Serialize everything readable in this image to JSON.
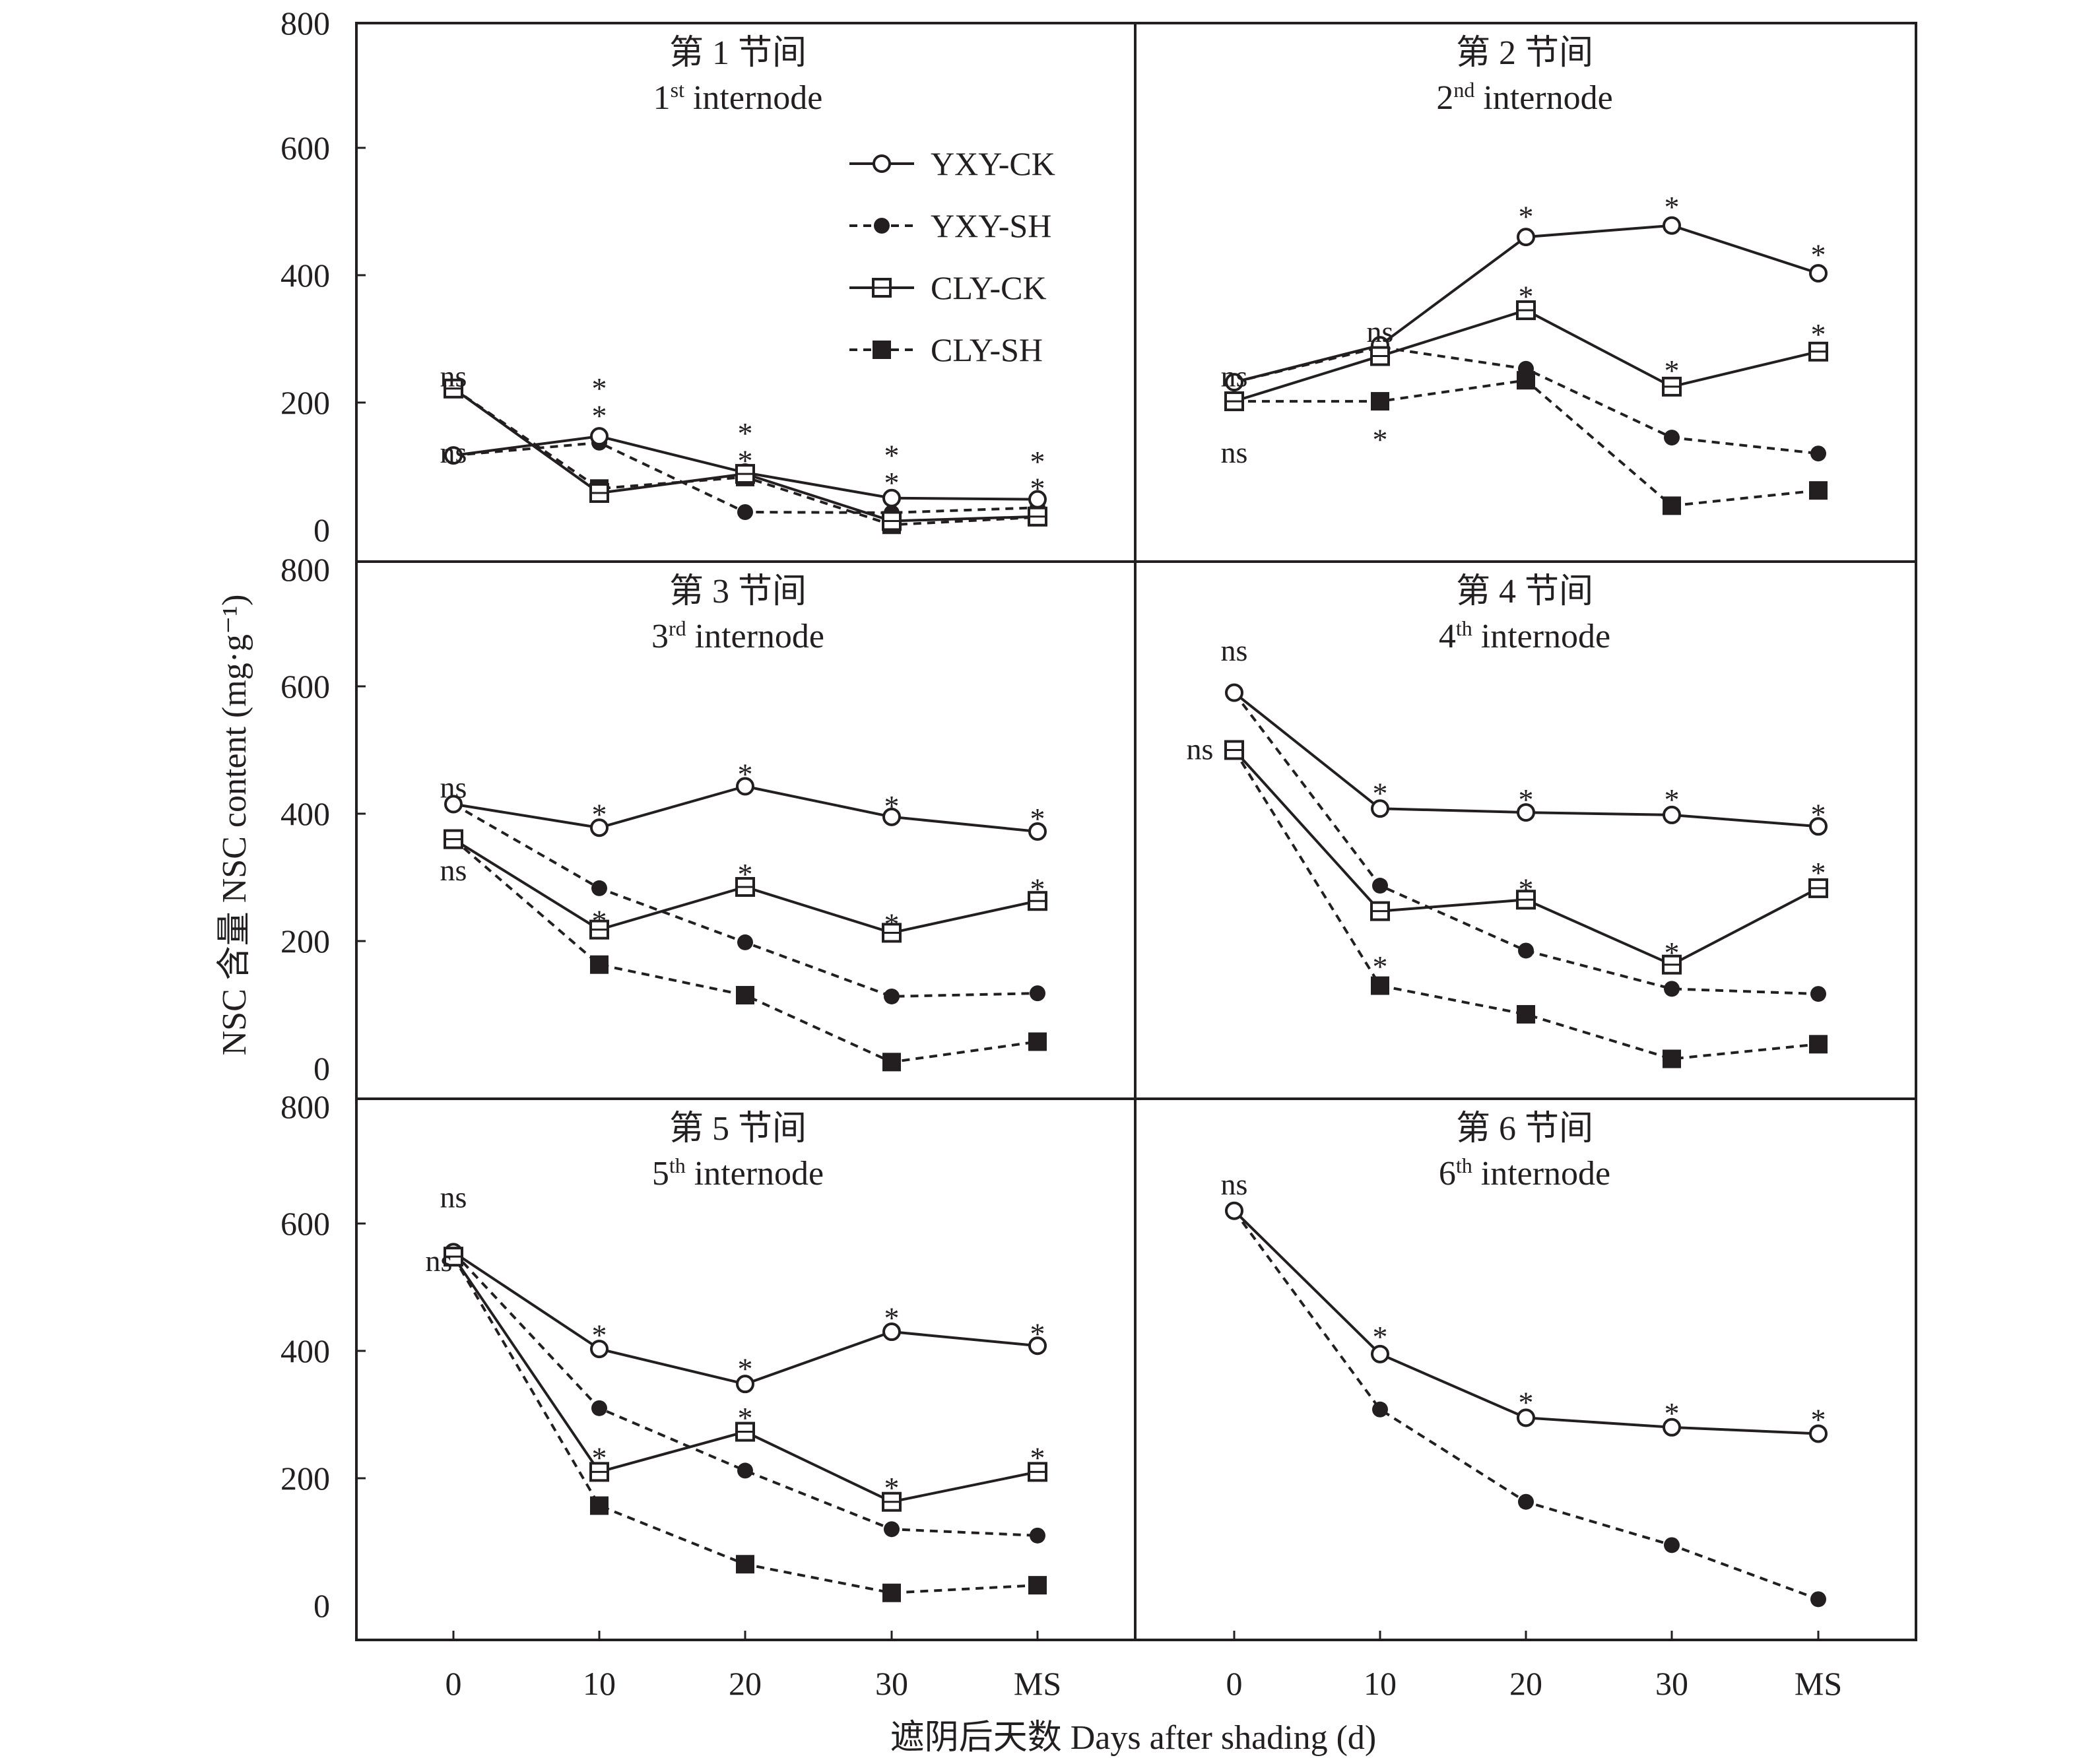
{
  "chart_data": {
    "type": "line",
    "ylabel": "NSC 含量 NSC content (mg·g⁻¹)",
    "xlabel": "遮阴后天数 Days after shading (d)",
    "x_categories": [
      "0",
      "10",
      "20",
      "30",
      "MS"
    ],
    "y_ticks": [
      "0",
      "200",
      "400",
      "600",
      "800"
    ],
    "ylim": [
      0,
      800
    ],
    "legend": [
      {
        "name": "YXY-CK",
        "style": "solid",
        "marker": "open-circle"
      },
      {
        "name": "YXY-SH",
        "style": "dashed",
        "marker": "filled-circle"
      },
      {
        "name": "CLY-CK",
        "style": "solid",
        "marker": "open-square"
      },
      {
        "name": "CLY-SH",
        "style": "dashed",
        "marker": "filled-square"
      }
    ],
    "panels": [
      {
        "title_cn": "第 1 节间",
        "title_num": "1",
        "title_sup": "st",
        "title_en": " internode",
        "series": {
          "YXY-CK": [
            117,
            147,
            90,
            50,
            48
          ],
          "YXY-SH": [
            117,
            137,
            28,
            27,
            35
          ],
          "CLY-CK": [
            222,
            58,
            88,
            14,
            21
          ],
          "CLY-SH": [
            222,
            65,
            83,
            8,
            20
          ]
        },
        "annotations": [
          {
            "x": 0,
            "y": 240,
            "text": "ns"
          },
          {
            "x": 0,
            "y": 120,
            "text": "ns"
          },
          {
            "x": 1,
            "y": 235,
            "text": "*"
          },
          {
            "x": 1,
            "y": 192,
            "text": "*"
          },
          {
            "x": 2,
            "y": 165,
            "text": "*"
          },
          {
            "x": 2,
            "y": 122,
            "text": "*"
          },
          {
            "x": 3,
            "y": 130,
            "text": "*"
          },
          {
            "x": 3,
            "y": 87,
            "text": "*"
          },
          {
            "x": 4,
            "y": 120,
            "text": "*"
          },
          {
            "x": 4,
            "y": 78,
            "text": "*"
          }
        ]
      },
      {
        "title_cn": "第 2 节间",
        "title_num": "2",
        "title_sup": "nd",
        "title_en": " internode",
        "series": {
          "YXY-CK": [
            232,
            290,
            460,
            478,
            403
          ],
          "YXY-SH": [
            232,
            287,
            253,
            145,
            120
          ],
          "CLY-CK": [
            202,
            273,
            345,
            225,
            280
          ],
          "CLY-SH": [
            202,
            202,
            235,
            38,
            62
          ]
        },
        "annotations": [
          {
            "x": 0,
            "y": 240,
            "text": "ns"
          },
          {
            "x": 0,
            "y": 120,
            "text": "ns"
          },
          {
            "x": 1,
            "y": 310,
            "text": "ns"
          },
          {
            "x": 1,
            "y": 155,
            "text": "*"
          },
          {
            "x": 2,
            "y": 505,
            "text": "*"
          },
          {
            "x": 2,
            "y": 380,
            "text": "*"
          },
          {
            "x": 3,
            "y": 520,
            "text": "*"
          },
          {
            "x": 3,
            "y": 263,
            "text": "*"
          },
          {
            "x": 4,
            "y": 445,
            "text": "*"
          },
          {
            "x": 4,
            "y": 320,
            "text": "*"
          }
        ]
      },
      {
        "title_cn": "第 3 节间",
        "title_num": "3",
        "title_sup": "rd",
        "title_en": " internode",
        "series": {
          "YXY-CK": [
            415,
            378,
            443,
            395,
            372
          ],
          "YXY-SH": [
            415,
            283,
            198,
            113,
            118
          ],
          "CLY-CK": [
            360,
            218,
            285,
            213,
            263
          ],
          "CLY-SH": [
            360,
            163,
            115,
            10,
            42
          ]
        },
        "annotations": [
          {
            "x": 0,
            "y": 440,
            "text": "ns"
          },
          {
            "x": 0,
            "y": 310,
            "text": "ns"
          },
          {
            "x": 1,
            "y": 412,
            "text": "*"
          },
          {
            "x": 1,
            "y": 245,
            "text": "*"
          },
          {
            "x": 2,
            "y": 475,
            "text": "*"
          },
          {
            "x": 2,
            "y": 318,
            "text": "*"
          },
          {
            "x": 3,
            "y": 425,
            "text": "*"
          },
          {
            "x": 3,
            "y": 240,
            "text": "*"
          },
          {
            "x": 4,
            "y": 405,
            "text": "*"
          },
          {
            "x": 4,
            "y": 295,
            "text": "*"
          }
        ]
      },
      {
        "title_cn": "第 4 节间",
        "title_num": "4",
        "title_sup": "th",
        "title_en": " internode",
        "series": {
          "YXY-CK": [
            590,
            408,
            402,
            398,
            380
          ],
          "YXY-SH": [
            590,
            287,
            185,
            125,
            117
          ],
          "CLY-CK": [
            500,
            247,
            265,
            163,
            283
          ],
          "CLY-SH": [
            500,
            130,
            85,
            15,
            38
          ]
        },
        "annotations": [
          {
            "x": 0,
            "y": 655,
            "text": "ns"
          },
          {
            "x": 0,
            "y": 500,
            "text": "ns",
            "dx": -52
          },
          {
            "x": 1,
            "y": 445,
            "text": "*"
          },
          {
            "x": 1,
            "y": 173,
            "text": "*"
          },
          {
            "x": 2,
            "y": 435,
            "text": "*"
          },
          {
            "x": 2,
            "y": 295,
            "text": "*"
          },
          {
            "x": 3,
            "y": 435,
            "text": "*"
          },
          {
            "x": 3,
            "y": 195,
            "text": "*"
          },
          {
            "x": 4,
            "y": 412,
            "text": "*"
          },
          {
            "x": 4,
            "y": 320,
            "text": "*"
          }
        ]
      },
      {
        "title_cn": "第 5 节间",
        "title_num": "5",
        "title_sup": "th",
        "title_en": " internode",
        "series": {
          "YXY-CK": [
            555,
            403,
            348,
            430,
            408
          ],
          "YXY-SH": [
            555,
            310,
            212,
            120,
            110
          ],
          "CLY-CK": [
            548,
            210,
            273,
            163,
            210
          ],
          "CLY-SH": [
            548,
            157,
            65,
            20,
            32
          ]
        },
        "annotations": [
          {
            "x": 0,
            "y": 640,
            "text": "ns"
          },
          {
            "x": 0,
            "y": 540,
            "text": "ns",
            "dx": -22
          },
          {
            "x": 1,
            "y": 438,
            "text": "*"
          },
          {
            "x": 1,
            "y": 245,
            "text": "*"
          },
          {
            "x": 2,
            "y": 385,
            "text": "*"
          },
          {
            "x": 2,
            "y": 308,
            "text": "*"
          },
          {
            "x": 3,
            "y": 465,
            "text": "*"
          },
          {
            "x": 3,
            "y": 198,
            "text": "*"
          },
          {
            "x": 4,
            "y": 440,
            "text": "*"
          },
          {
            "x": 4,
            "y": 245,
            "text": "*"
          }
        ]
      },
      {
        "title_cn": "第 6 节间",
        "title_num": "6",
        "title_sup": "th",
        "title_en": " internode",
        "series": {
          "YXY-CK": [
            620,
            395,
            295,
            280,
            270
          ],
          "YXY-SH": [
            620,
            308,
            163,
            95,
            10
          ]
        },
        "annotations": [
          {
            "x": 0,
            "y": 660,
            "text": "ns"
          },
          {
            "x": 1,
            "y": 435,
            "text": "*"
          },
          {
            "x": 2,
            "y": 332,
            "text": "*"
          },
          {
            "x": 3,
            "y": 315,
            "text": "*"
          },
          {
            "x": 4,
            "y": 305,
            "text": "*"
          }
        ]
      }
    ]
  }
}
